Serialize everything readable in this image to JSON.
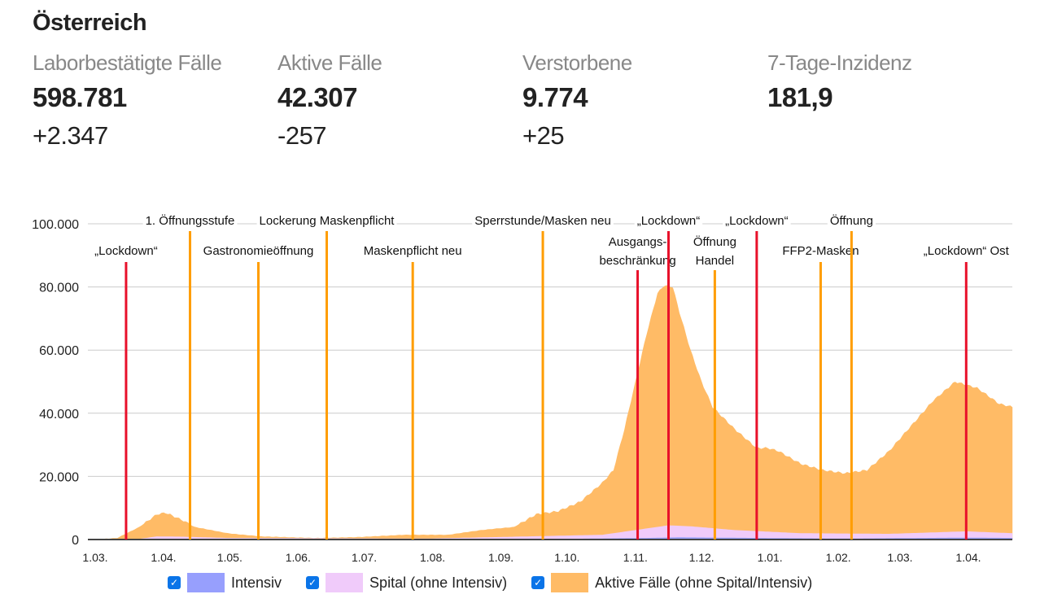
{
  "title": "Österreich",
  "stats": [
    {
      "label": "Laborbestätigte Fälle",
      "value": "598.781",
      "change": "+2.347"
    },
    {
      "label": "Aktive Fälle",
      "value": "42.307",
      "change": "-257"
    },
    {
      "label": "Verstorbene",
      "value": "9.774",
      "change": "+25"
    },
    {
      "label": "7-Tage-Inzidenz",
      "value": "181,9",
      "change": ""
    }
  ],
  "chart_data": {
    "type": "area",
    "x_unit": "days since 1.03.2020",
    "ylim": [
      0,
      100000
    ],
    "yticks": [
      0,
      20000,
      40000,
      60000,
      80000,
      100000
    ],
    "ytick_labels": [
      "0",
      "20.000",
      "40.000",
      "60.000",
      "80.000",
      "100.000"
    ],
    "xticks": [
      0,
      31,
      61,
      92,
      122,
      153,
      184,
      214,
      245,
      275,
      306,
      337,
      365,
      396
    ],
    "xtick_labels": [
      "1.03.",
      "1.04.",
      "1.05.",
      "1.06.",
      "1.07.",
      "1.08.",
      "1.09.",
      "1.10.",
      "1.11.",
      "1.12.",
      "1.01.",
      "1.02.",
      "1.03.",
      "1.04."
    ],
    "xmax": 416,
    "grid": true,
    "colors": {
      "Intensiv": "#979ffd",
      "Spital": "#f0cbfa",
      "Aktive": "#ffbb66",
      "event_red": "#e8102a",
      "event_orange": "#ff9d00"
    },
    "series": [
      {
        "name": "Aktive Fälle (ohne Spital/Intensiv)",
        "key": "Aktive",
        "note": "stacked top",
        "points": [
          [
            0,
            0
          ],
          [
            10,
            500
          ],
          [
            20,
            4000
          ],
          [
            28,
            8000
          ],
          [
            32,
            8500
          ],
          [
            40,
            6000
          ],
          [
            45,
            4000
          ],
          [
            60,
            2000
          ],
          [
            75,
            1000
          ],
          [
            100,
            500
          ],
          [
            120,
            800
          ],
          [
            140,
            1500
          ],
          [
            160,
            1500
          ],
          [
            175,
            3000
          ],
          [
            190,
            4000
          ],
          [
            200,
            8000
          ],
          [
            210,
            9000
          ],
          [
            220,
            12000
          ],
          [
            230,
            18000
          ],
          [
            235,
            22000
          ],
          [
            240,
            35000
          ],
          [
            245,
            50000
          ],
          [
            250,
            65000
          ],
          [
            255,
            78000
          ],
          [
            258,
            80500
          ],
          [
            262,
            80000
          ],
          [
            265,
            72000
          ],
          [
            270,
            60000
          ],
          [
            275,
            50000
          ],
          [
            280,
            42000
          ],
          [
            290,
            35000
          ],
          [
            300,
            29000
          ],
          [
            305,
            29000
          ],
          [
            310,
            28000
          ],
          [
            320,
            24000
          ],
          [
            330,
            22000
          ],
          [
            340,
            21000
          ],
          [
            350,
            22000
          ],
          [
            360,
            28000
          ],
          [
            370,
            36000
          ],
          [
            380,
            44000
          ],
          [
            390,
            50000
          ],
          [
            400,
            48000
          ],
          [
            410,
            43000
          ],
          [
            416,
            42000
          ]
        ]
      },
      {
        "name": "Spital (ohne Intensiv)",
        "key": "Spital",
        "points": [
          [
            0,
            0
          ],
          [
            20,
            200
          ],
          [
            28,
            1000
          ],
          [
            40,
            900
          ],
          [
            60,
            500
          ],
          [
            150,
            300
          ],
          [
            230,
            1500
          ],
          [
            250,
            3500
          ],
          [
            260,
            4500
          ],
          [
            270,
            4200
          ],
          [
            290,
            3000
          ],
          [
            320,
            2000
          ],
          [
            360,
            1800
          ],
          [
            395,
            2600
          ],
          [
            416,
            2000
          ]
        ]
      },
      {
        "name": "Intensiv",
        "key": "Intensiv",
        "points": [
          [
            0,
            0
          ],
          [
            20,
            100
          ],
          [
            30,
            250
          ],
          [
            100,
            50
          ],
          [
            200,
            100
          ],
          [
            250,
            500
          ],
          [
            265,
            700
          ],
          [
            300,
            500
          ],
          [
            340,
            300
          ],
          [
            395,
            600
          ],
          [
            416,
            500
          ]
        ]
      }
    ],
    "events": [
      {
        "day": 14,
        "label": "„Lockdown“",
        "kind": "red"
      },
      {
        "day": 43,
        "label": "1. Öffnungsstufe",
        "kind": "orange"
      },
      {
        "day": 74,
        "label": "Gastronomieöffnung",
        "kind": "orange"
      },
      {
        "day": 105,
        "label": "Lockerung Maskenpflicht",
        "kind": "orange"
      },
      {
        "day": 144,
        "label": "Maskenpflicht neu",
        "kind": "orange"
      },
      {
        "day": 203,
        "label": "Sperrstunde/Masken neu",
        "kind": "orange"
      },
      {
        "day": 246,
        "label": "Ausgangs-|beschränkung",
        "kind": "red"
      },
      {
        "day": 260,
        "label": "„Lockdown“",
        "kind": "red"
      },
      {
        "day": 281,
        "label": "Öffnung|Handel",
        "kind": "orange"
      },
      {
        "day": 300,
        "label": "„Lockdown“",
        "kind": "red"
      },
      {
        "day": 329,
        "label": "FFP2-Masken",
        "kind": "orange"
      },
      {
        "day": 343,
        "label": "Öffnung",
        "kind": "orange"
      },
      {
        "day": 395,
        "label": "„Lockdown“ Ost",
        "kind": "red"
      }
    ],
    "legend": [
      {
        "label": "Intensiv",
        "key": "Intensiv",
        "checked": true
      },
      {
        "label": "Spital (ohne Intensiv)",
        "key": "Spital",
        "checked": true
      },
      {
        "label": "Aktive Fälle (ohne Spital/Intensiv)",
        "key": "Aktive",
        "checked": true
      }
    ]
  }
}
